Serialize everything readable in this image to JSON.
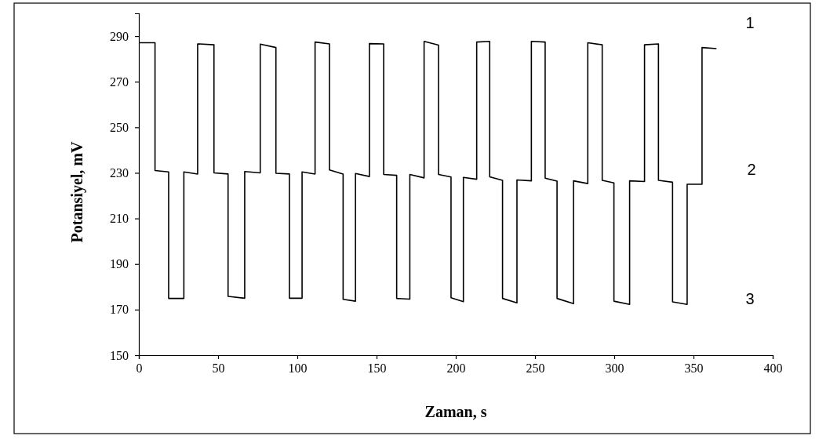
{
  "chart_data": {
    "type": "line",
    "xlabel": "Zaman, s",
    "ylabel": "Potansiyel, mV",
    "xlim": [
      0,
      400
    ],
    "xticks": [
      0,
      50,
      100,
      150,
      200,
      250,
      300,
      350,
      400
    ],
    "ylim": [
      150,
      300
    ],
    "yticks": [
      150,
      170,
      190,
      210,
      230,
      250,
      270,
      290
    ],
    "grid": false,
    "marker": "none",
    "line_style": "solid",
    "series": [
      {
        "color": "#000000",
        "x": [
          0,
          10.2,
          10.2,
          18.8,
          18.8,
          28.4,
          28.4,
          37.1,
          37.1,
          47.4,
          47.4,
          56.3,
          56.3,
          66.8,
          66.8,
          76.6,
          76.6,
          86.5,
          86.5,
          95,
          95,
          103,
          103,
          111.2,
          111.2,
          120.3,
          120.3,
          128.9,
          128.9,
          136.7,
          136.7,
          145.5,
          145.5,
          154.5,
          154.5,
          162.7,
          162.7,
          171,
          171,
          180,
          180,
          189.1,
          189.1,
          197,
          197,
          204.8,
          204.8,
          213.2,
          213.2,
          221.4,
          221.4,
          229.5,
          229.5,
          238.6,
          238.6,
          247.7,
          247.7,
          256.4,
          256.4,
          263.9,
          263.9,
          274.3,
          274.3,
          283.3,
          283.3,
          292.4,
          292.4,
          299.8,
          299.8,
          309.7,
          309.7,
          319.1,
          319.1,
          327.9,
          327.9,
          336.8,
          336.8,
          346,
          346,
          355.4,
          355.4,
          364.5
        ],
        "values": [
          287.1,
          287.1,
          231,
          230.4,
          174.9,
          174.9,
          230.4,
          229.5,
          286.6,
          286.2,
          230,
          229.5,
          175.8,
          175,
          230.6,
          230,
          286.5,
          285,
          229.8,
          229.5,
          175,
          175,
          230.4,
          229.5,
          287.4,
          286.6,
          231.3,
          229.5,
          174.5,
          173.7,
          229.7,
          228.4,
          286.7,
          286.6,
          229.3,
          228.9,
          174.9,
          174.6,
          229.3,
          227.8,
          287.7,
          286.1,
          229.3,
          228.2,
          175.2,
          173.5,
          228,
          227.2,
          287.4,
          287.7,
          228.3,
          226.7,
          174.9,
          173,
          226.9,
          226.5,
          287.7,
          287.4,
          227.7,
          226.4,
          174.9,
          172.6,
          226.5,
          225.3,
          287.1,
          286.2,
          226.7,
          225.6,
          173.7,
          172.3,
          226.5,
          226.2,
          286.2,
          286.6,
          226.7,
          225.9,
          173.4,
          172.3,
          225,
          225,
          285,
          284.5
        ]
      }
    ],
    "annotations": [
      "1",
      "2",
      "3"
    ]
  }
}
